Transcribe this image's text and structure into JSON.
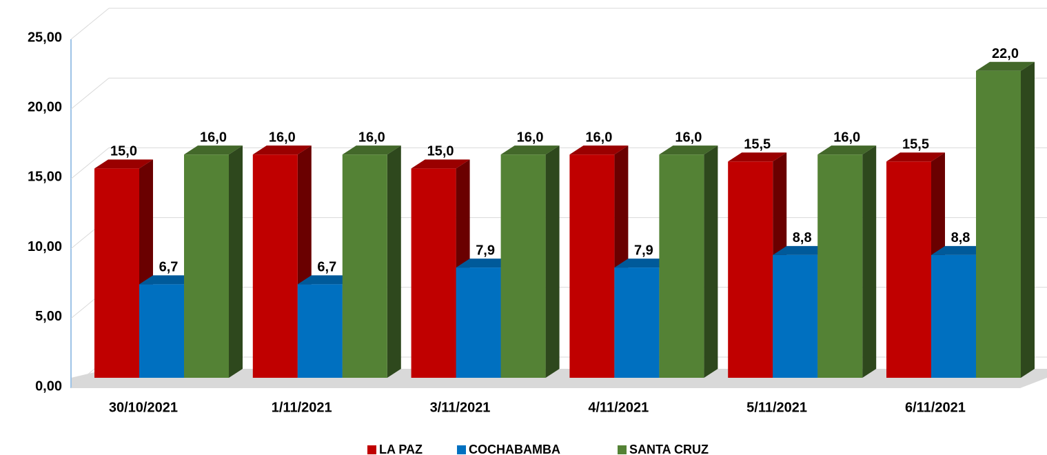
{
  "chart_data": {
    "type": "bar3d",
    "categories": [
      "30/10/2021",
      "1/11/2021",
      "3/11/2021",
      "4/11/2021",
      "5/11/2021",
      "6/11/2021"
    ],
    "series": [
      {
        "name": "LA PAZ",
        "color": "#c00000",
        "values": [
          15,
          16,
          15,
          16,
          15.5,
          15.5
        ],
        "value_labels": [
          "15,0",
          "16,0",
          "15,0",
          "16,0",
          "15,5",
          "15,5"
        ]
      },
      {
        "name": "COCHABAMBA",
        "color": "#0070c0",
        "values": [
          6.7,
          6.7,
          7.9,
          7.9,
          8.8,
          8.8
        ],
        "value_labels": [
          "6,7",
          "6,7",
          "7,9",
          "7,9",
          "8,8",
          "8,8"
        ]
      },
      {
        "name": "SANTA CRUZ",
        "color": "#548235",
        "values": [
          16,
          16,
          16,
          16,
          16,
          22
        ],
        "value_labels": [
          "16,0",
          "16,0",
          "16,0",
          "16,0",
          "16,0",
          "22,0"
        ]
      }
    ],
    "ylim": [
      0,
      25
    ],
    "yticks": [
      {
        "value": 0,
        "label": "0,00"
      },
      {
        "value": 5,
        "label": "5,00"
      },
      {
        "value": 10,
        "label": "10,00"
      },
      {
        "value": 15,
        "label": "15,00"
      },
      {
        "value": 20,
        "label": "20,00"
      },
      {
        "value": 25,
        "label": "25,00"
      }
    ],
    "grid": true,
    "legend": "bottom"
  }
}
